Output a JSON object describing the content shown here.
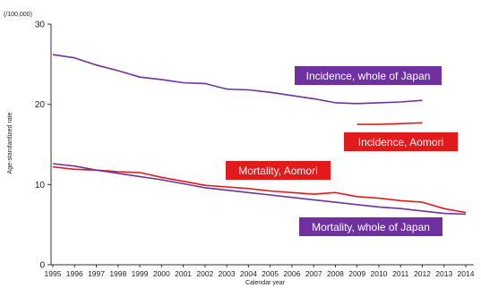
{
  "chart_data": {
    "type": "line",
    "y_unit_note": "(/100,000)",
    "ylabel": "Age-standardized rate",
    "xlabel": "Calendar year",
    "ylim": [
      0,
      30
    ],
    "yticks": [
      0,
      10,
      20,
      30
    ],
    "xticks": [
      1995,
      1996,
      1997,
      1998,
      1999,
      2000,
      2001,
      2002,
      2003,
      2004,
      2005,
      2006,
      2007,
      2008,
      2009,
      2010,
      2011,
      2012,
      2013,
      2014
    ],
    "grid": false,
    "colors": {
      "japan": "#7030a0",
      "aomori": "#e31a1c"
    },
    "series": [
      {
        "key": "incidence_japan",
        "color_key": "japan",
        "x": [
          1995,
          1996,
          1997,
          1998,
          1999,
          2000,
          2001,
          2002,
          2003,
          2004,
          2005,
          2006,
          2007,
          2008,
          2009,
          2010,
          2011,
          2012
        ],
        "values": [
          26.2,
          25.8,
          24.9,
          24.2,
          23.4,
          23.1,
          22.7,
          22.6,
          21.9,
          21.8,
          21.5,
          21.1,
          20.7,
          20.2,
          20.1,
          20.2,
          20.3,
          20.5
        ]
      },
      {
        "key": "incidence_aomori",
        "color_key": "aomori",
        "x": [
          2009,
          2010,
          2011,
          2012
        ],
        "values": [
          17.5,
          17.5,
          17.6,
          17.7
        ]
      },
      {
        "key": "mortality_aomori",
        "color_key": "aomori",
        "x": [
          1995,
          1996,
          1997,
          1998,
          1999,
          2000,
          2001,
          2002,
          2003,
          2004,
          2005,
          2006,
          2007,
          2008,
          2009,
          2010,
          2011,
          2012,
          2013,
          2014
        ],
        "values": [
          12.2,
          11.9,
          11.8,
          11.6,
          11.5,
          10.9,
          10.4,
          9.9,
          9.7,
          9.5,
          9.2,
          9.0,
          8.8,
          9.0,
          8.5,
          8.3,
          8.0,
          7.8,
          7.0,
          6.5
        ]
      },
      {
        "key": "mortality_japan",
        "color_key": "japan",
        "x": [
          1995,
          1996,
          1997,
          1998,
          1999,
          2000,
          2001,
          2002,
          2003,
          2004,
          2005,
          2006,
          2007,
          2008,
          2009,
          2010,
          2011,
          2012,
          2013,
          2014
        ],
        "values": [
          12.6,
          12.3,
          11.8,
          11.4,
          11.0,
          10.6,
          10.1,
          9.6,
          9.3,
          9.0,
          8.7,
          8.4,
          8.1,
          7.8,
          7.5,
          7.2,
          7.0,
          6.7,
          6.4,
          6.3
        ]
      }
    ],
    "annotations": [
      {
        "text": "Incidence, whole of Japan",
        "color_key": "japan"
      },
      {
        "text": "Incidence, Aomori",
        "color_key": "aomori"
      },
      {
        "text": "Mortality, Aomori",
        "color_key": "aomori"
      },
      {
        "text": "Mortality, whole of Japan",
        "color_key": "japan"
      }
    ]
  }
}
